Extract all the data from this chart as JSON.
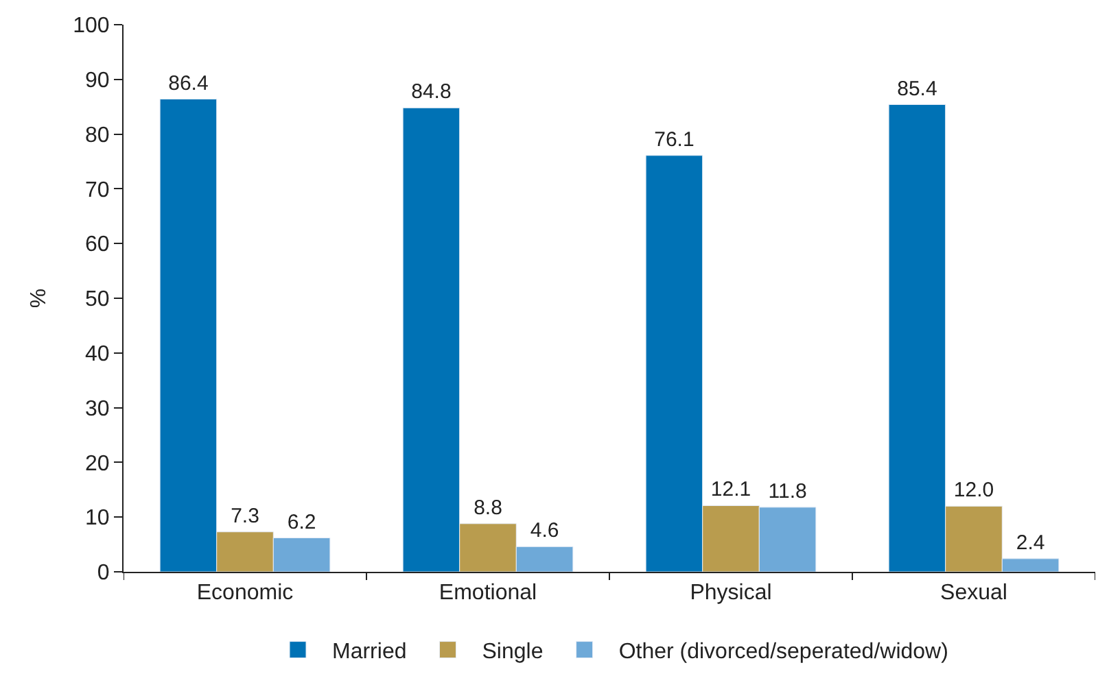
{
  "chart_data": {
    "type": "bar",
    "ylabel": "%",
    "categories": [
      "Economic",
      "Emotional",
      "Physical",
      "Sexual"
    ],
    "series": [
      {
        "name": "Married",
        "color": "#0072b5",
        "values": [
          86.4,
          84.8,
          76.1,
          85.4
        ],
        "value_labels": [
          "86.4",
          "84.8",
          "76.1",
          "85.4"
        ]
      },
      {
        "name": "Single",
        "color": "#b99c4e",
        "values": [
          7.3,
          8.8,
          12.1,
          12.0
        ],
        "value_labels": [
          "7.3",
          "8.8",
          "12.1",
          "12.0"
        ]
      },
      {
        "name": "Other (divorced/seperated/widow)",
        "color": "#6ea9d8",
        "values": [
          6.2,
          4.6,
          11.8,
          2.4
        ],
        "value_labels": [
          "6.2",
          "4.6",
          "11.8",
          "2.4"
        ]
      }
    ],
    "ylim": [
      0,
      100
    ],
    "yticks": [
      0,
      10,
      20,
      30,
      40,
      50,
      60,
      70,
      80,
      90,
      100
    ],
    "grid": false,
    "legend": "bottom"
  }
}
